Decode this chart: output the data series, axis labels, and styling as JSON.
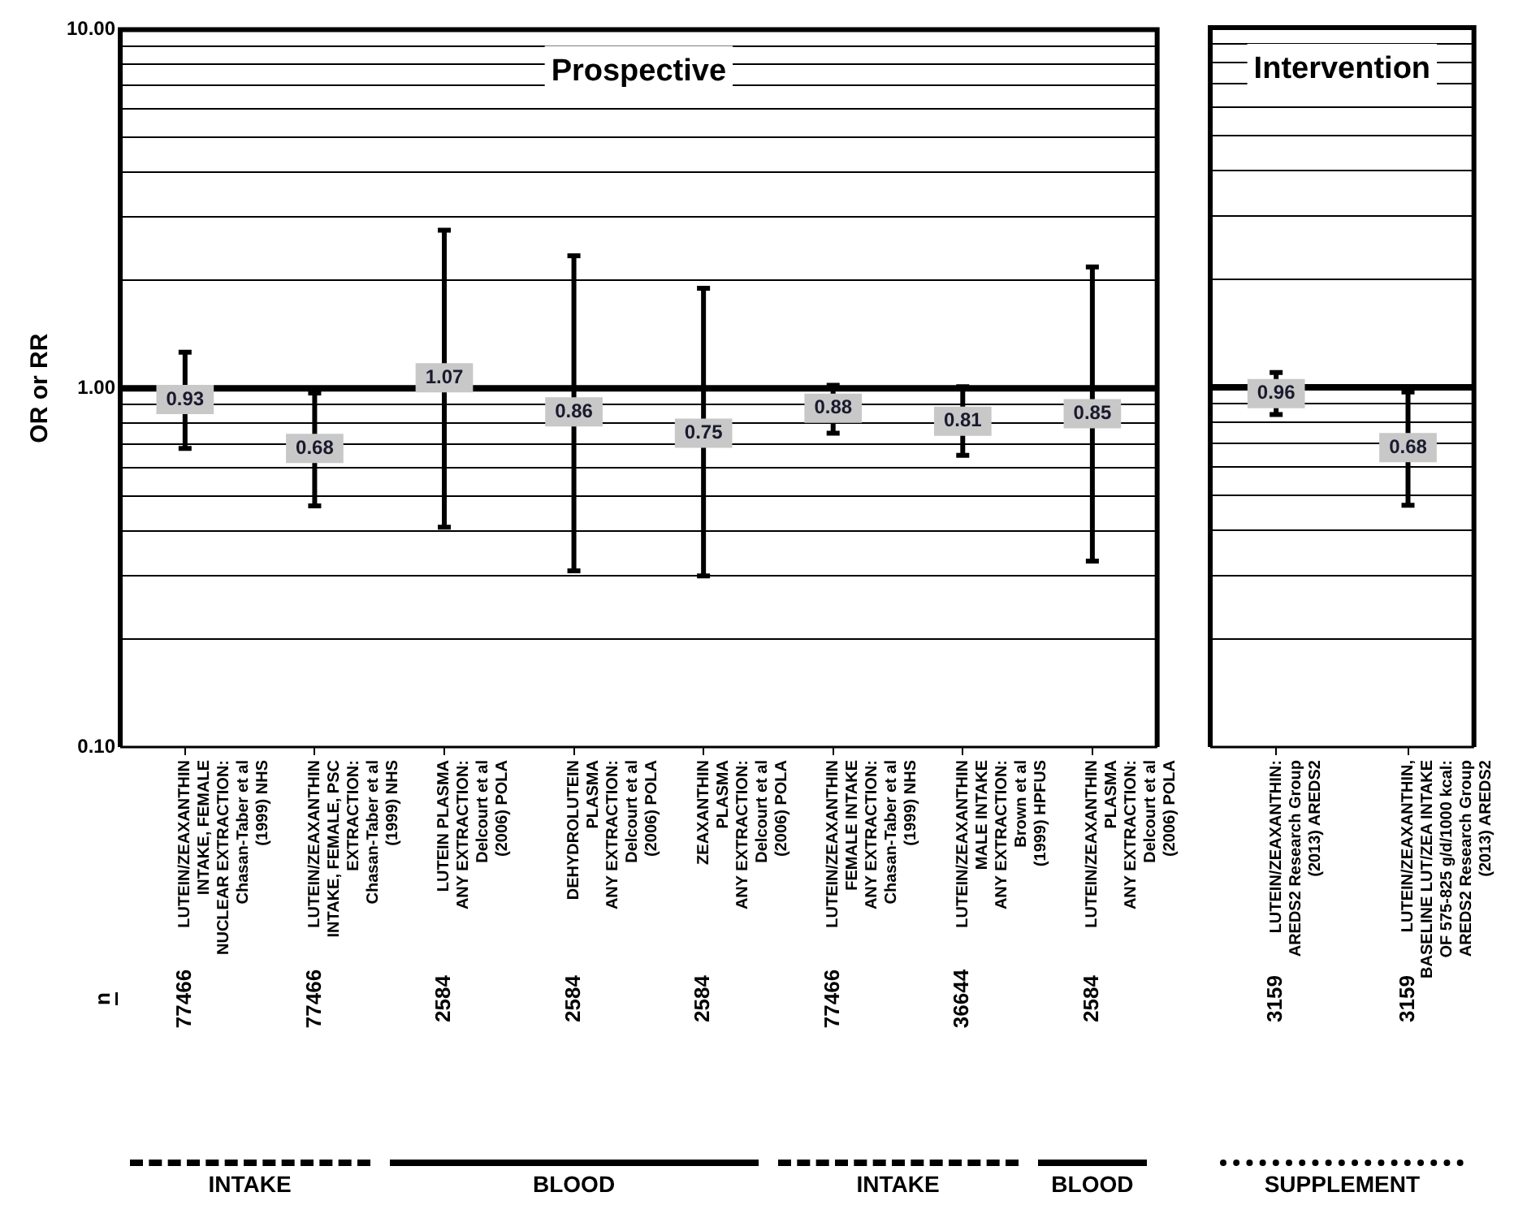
{
  "chart_data": [
    {
      "type": "scatter",
      "title": "Prospective",
      "ylabel": "OR or RR",
      "marker": "square",
      "log": "y",
      "grid": "y",
      "data_labels": true,
      "categories": [
        "LUTEIN/ZEAXANTHIN\nINTAKE, FEMALE\nNUCLEAR EXTRACTION:\nChasan-Taber et al\n(1999) NHS",
        "LUTEIN/ZEAXANTHIN\nINTAKE, FEMALE, PSC\nEXTRACTION:\nChasan-Taber et al\n(1999) NHS",
        "LUTEIN PLASMA\nANY EXTRACTION:\nDelcourt et al\n(2006) POLA",
        "DEHYDROLUTEIN\nPLASMA\nANY EXTRACTION:\nDelcourt et al\n(2006) POLA",
        "ZEAXANTHIN\nPLASMA\nANY EXTRACTION:\nDelcourt et al\n(2006) POLA",
        "LUTEIN/ZEAXANTHIN\nFEMALE INTAKE\nANY EXTRACTION:\nChasan-Taber et al\n(1999) NHS",
        "LUTEIN/ZEAXANTHIN\nMALE INTAKE\nANY EXTRACTION:\nBrown et al\n(1999) HPFUS",
        "LUTEIN/ZEAXANTHIN\nPLASMA\nANY EXTRACTION:\nDelcourt et al\n(2006) POLA"
      ],
      "values": [
        0.93,
        0.68,
        1.07,
        0.86,
        0.75,
        0.88,
        0.81,
        0.85
      ],
      "errors": [
        [
          0.68,
          1.26
        ],
        [
          0.47,
          0.97
        ],
        [
          0.41,
          2.76
        ],
        [
          0.31,
          2.34
        ],
        [
          0.3,
          1.9
        ],
        [
          0.75,
          1.02
        ],
        [
          0.65,
          1.01
        ],
        [
          0.33,
          2.18
        ]
      ],
      "color": "#c8c8c8",
      "ylim": [
        0.1,
        10
      ],
      "yticks": [
        {
          "value": 0.1,
          "label": "0.10"
        },
        {
          "value": 0.2,
          "label": null
        },
        {
          "value": 0.3,
          "label": null
        },
        {
          "value": 0.4,
          "label": null
        },
        {
          "value": 0.5,
          "label": null
        },
        {
          "value": 0.6,
          "label": null
        },
        {
          "value": 0.7,
          "label": null
        },
        {
          "value": 0.8,
          "label": null
        },
        {
          "value": 0.9,
          "label": null
        },
        {
          "value": 1,
          "label": "1.00"
        },
        {
          "value": 2,
          "label": null
        },
        {
          "value": 3,
          "label": null
        },
        {
          "value": 4,
          "label": null
        },
        {
          "value": 5,
          "label": null
        },
        {
          "value": 6,
          "label": null
        },
        {
          "value": 7,
          "label": null
        },
        {
          "value": 8,
          "label": null
        },
        {
          "value": 9,
          "label": null
        },
        {
          "value": 10,
          "label": "10.00"
        }
      ],
      "ref_lines": [
        {
          "axis": "y",
          "value": 1,
          "color": "#000000"
        }
      ],
      "annotations": [
        "n",
        "77466",
        "77466",
        "2584",
        "2584",
        "2584",
        "77466",
        "36644",
        "2584",
        "INTAKE",
        "BLOOD",
        "INTAKE",
        "BLOOD"
      ]
    },
    {
      "type": "scatter",
      "title": "Intervention",
      "marker": "square",
      "log": "y",
      "grid": "y",
      "data_labels": true,
      "tick_labels": "x",
      "categories": [
        "LUTEIN/ZEAXANTHIN:\nAREDS2 Research Group\n(2013) AREDS2",
        "LUTEIN/ZEAXANTHIN,\nBASELINE LUT/ZEA INTAKE\nOF 575-825 g/d/1000 kcal:\nAREDS2 Research Group\n(2013) AREDS2"
      ],
      "values": [
        0.96,
        0.68
      ],
      "errors": [
        [
          0.84,
          1.1
        ],
        [
          0.47,
          0.97
        ]
      ],
      "color": "#c8c8c8",
      "ylim": [
        0.1,
        10
      ],
      "yticks": [
        {
          "value": 0.1,
          "label": null
        },
        {
          "value": 0.2,
          "label": null
        },
        {
          "value": 0.3,
          "label": null
        },
        {
          "value": 0.4,
          "label": null
        },
        {
          "value": 0.5,
          "label": null
        },
        {
          "value": 0.6,
          "label": null
        },
        {
          "value": 0.7,
          "label": null
        },
        {
          "value": 0.8,
          "label": null
        },
        {
          "value": 0.9,
          "label": null
        },
        {
          "value": 1,
          "label": null
        },
        {
          "value": 2,
          "label": null
        },
        {
          "value": 3,
          "label": null
        },
        {
          "value": 4,
          "label": null
        },
        {
          "value": 5,
          "label": null
        },
        {
          "value": 6,
          "label": null
        },
        {
          "value": 7,
          "label": null
        },
        {
          "value": 8,
          "label": null
        },
        {
          "value": 9,
          "label": null
        },
        {
          "value": 10,
          "label": null
        }
      ],
      "ref_lines": [
        {
          "axis": "y",
          "value": 1,
          "color": "#000000"
        }
      ],
      "annotations": [
        "3159",
        "3159",
        "SUPPLEMENT"
      ]
    }
  ]
}
